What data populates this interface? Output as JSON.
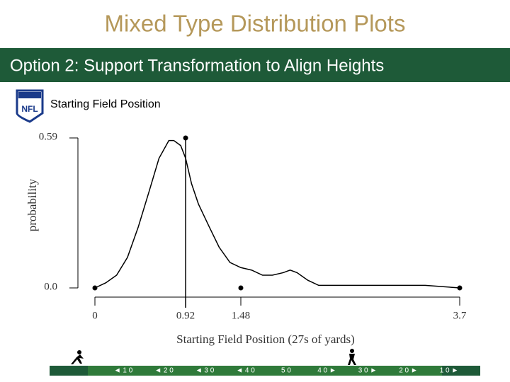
{
  "slide_title": "Mixed Type Distribution Plots",
  "banner": "Option 2: Support Transformation to Align Heights",
  "chart_data": {
    "type": "line",
    "title": "Starting Field Position",
    "x_label": "Starting Field Position (27s of yards)",
    "y_label": "probability",
    "color": "#000000",
    "curve": {
      "x": [
        0,
        0.11,
        0.22,
        0.33,
        0.44,
        0.55,
        0.65,
        0.75,
        0.8,
        0.87,
        0.92,
        0.98,
        1.05,
        1.16,
        1.26,
        1.37,
        1.48,
        1.59,
        1.7,
        1.8,
        1.91,
        1.98,
        2.05,
        2.16,
        2.27,
        2.49,
        2.77,
        3.06,
        3.35,
        3.7
      ],
      "values": [
        0.0,
        0.02,
        0.05,
        0.12,
        0.24,
        0.38,
        0.51,
        0.58,
        0.58,
        0.56,
        0.51,
        0.41,
        0.33,
        0.24,
        0.16,
        0.1,
        0.08,
        0.07,
        0.05,
        0.05,
        0.06,
        0.07,
        0.06,
        0.03,
        0.01,
        0.01,
        0.01,
        0.01,
        0.01,
        0.0
      ]
    },
    "points": {
      "x": [
        0,
        0.92,
        1.48,
        3.7
      ],
      "values": [
        0,
        0.59,
        0,
        0
      ]
    },
    "xlim": [
      0,
      3.7
    ],
    "ylim": [
      0,
      0.59
    ],
    "xticks": [
      0,
      0.92,
      1.48,
      3.7
    ],
    "yticks": [
      {
        "value": 0,
        "label": "0.0"
      },
      0.59
    ]
  },
  "footer": {
    "yard_labels": [
      "◄ 1 0",
      "◄ 2 0",
      "◄ 3 0",
      "◄ 4 0",
      "5 0",
      "4 0 ►",
      "3 0 ►",
      "2 0 ►",
      "1 0 ►"
    ]
  }
}
